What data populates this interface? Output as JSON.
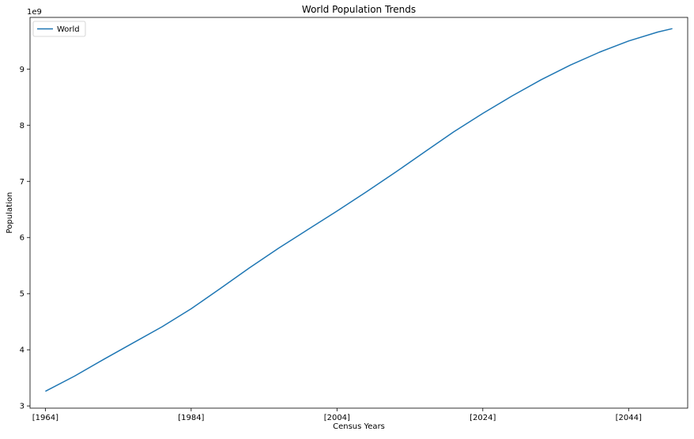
{
  "chart_data": {
    "type": "line",
    "title": "World Population Trends",
    "xlabel": "Census Years",
    "ylabel": "Population",
    "y_offset_label": "1e9",
    "xlim": [
      1961.9,
      2052.1
    ],
    "ylim": [
      2960000000.0,
      9920000000.0
    ],
    "x_ticks": [
      1964,
      1984,
      2004,
      2024,
      2044
    ],
    "x_tick_labels": [
      "[1964]",
      "[1984]",
      "[2004]",
      "[2024]",
      "[2044]"
    ],
    "y_ticks": [
      3000000000.0,
      4000000000.0,
      5000000000.0,
      6000000000.0,
      7000000000.0,
      8000000000.0,
      9000000000.0
    ],
    "y_tick_labels": [
      "3",
      "4",
      "5",
      "6",
      "7",
      "8",
      "9"
    ],
    "grid": false,
    "legend_position": "upper left",
    "series": [
      {
        "name": "World",
        "color": "#1f77b4",
        "x": [
          1964,
          1968,
          1972,
          1976,
          1980,
          1984,
          1988,
          1992,
          1996,
          2000,
          2004,
          2008,
          2012,
          2016,
          2020,
          2024,
          2028,
          2032,
          2036,
          2040,
          2044,
          2048,
          2050
        ],
        "y": [
          3260000000.0,
          3530000000.0,
          3830000000.0,
          4120000000.0,
          4410000000.0,
          4730000000.0,
          5090000000.0,
          5460000000.0,
          5810000000.0,
          6140000000.0,
          6470000000.0,
          6810000000.0,
          7160000000.0,
          7520000000.0,
          7880000000.0,
          8210000000.0,
          8520000000.0,
          8810000000.0,
          9070000000.0,
          9300000000.0,
          9500000000.0,
          9660000000.0,
          9720000000.0
        ]
      }
    ]
  }
}
